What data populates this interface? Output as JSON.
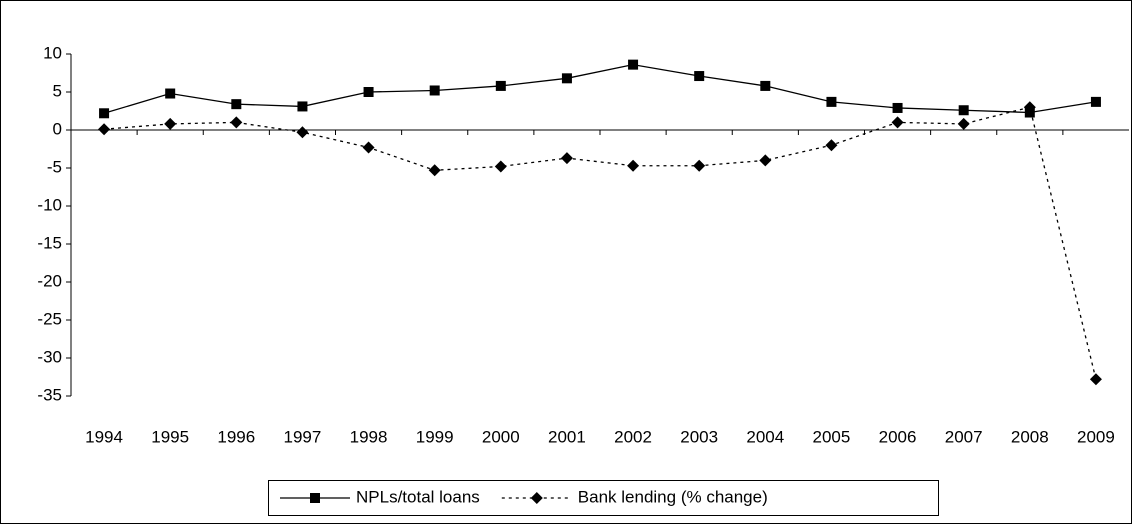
{
  "chart_data": {
    "type": "line",
    "categories": [
      "1994",
      "1995",
      "1996",
      "1997",
      "1998",
      "1999",
      "2000",
      "2001",
      "2002",
      "2003",
      "2004",
      "2005",
      "2006",
      "2007",
      "2008",
      "2009"
    ],
    "series": [
      {
        "name": "NPLs/total loans",
        "color": "#000000",
        "marker": "square",
        "dash": "solid",
        "values": [
          2.2,
          4.8,
          3.4,
          3.1,
          5.0,
          5.2,
          5.8,
          6.8,
          8.6,
          7.1,
          5.8,
          3.7,
          2.9,
          2.6,
          2.3,
          3.7
        ]
      },
      {
        "name": "Bank lending (% change)",
        "color": "#000000",
        "marker": "diamond",
        "dash": "dotted",
        "values": [
          0.1,
          0.8,
          1.0,
          -0.3,
          -2.3,
          -5.3,
          -4.8,
          -3.7,
          -4.7,
          -4.7,
          -4.0,
          -2.0,
          1.0,
          0.8,
          3.0,
          -32.8
        ]
      }
    ],
    "ylim": [
      -35,
      10
    ],
    "yticks": [
      10,
      5,
      0,
      -5,
      -10,
      -15,
      -20,
      -25,
      -30,
      -35
    ],
    "grid": false,
    "legend": "bottom"
  }
}
